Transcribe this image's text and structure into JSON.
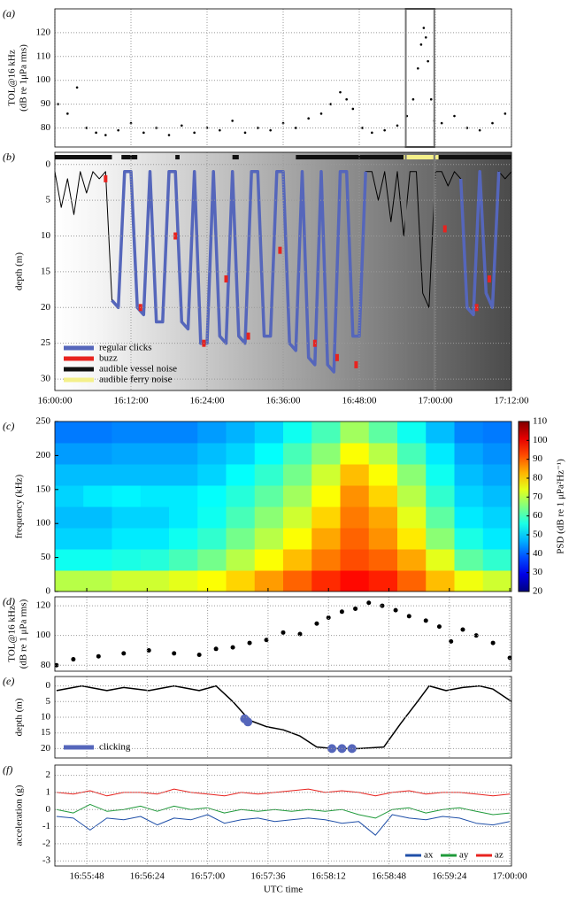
{
  "chart_data": [
    {
      "type": "scatter",
      "panel_label": "(a)",
      "ylabel": [
        "TOL@16 kHz",
        "(dB re 1μPa rms)"
      ],
      "color": "#000000",
      "grid": true,
      "xlim": [
        "16:00:00",
        "17:12:00"
      ],
      "xticks": [
        "16:00:00",
        "16:12:00",
        "16:24:00",
        "16:36:00",
        "16:48:00",
        "17:00:00",
        "17:12:00"
      ],
      "ylim": [
        72,
        130
      ],
      "yticks": [
        80,
        90,
        100,
        110,
        120
      ],
      "highlight": [
        "16:55:20",
        "16:59:50"
      ],
      "x": [
        "16:00:30",
        "16:02:00",
        "16:03:30",
        "16:05:00",
        "16:06:30",
        "16:08:00",
        "16:10:00",
        "16:12:00",
        "16:14:00",
        "16:16:00",
        "16:18:00",
        "16:20:00",
        "16:22:00",
        "16:24:00",
        "16:26:00",
        "16:28:00",
        "16:30:00",
        "16:32:00",
        "16:34:00",
        "16:36:00",
        "16:38:00",
        "16:40:00",
        "16:42:00",
        "16:43:30",
        "16:45:00",
        "16:46:00",
        "16:47:00",
        "16:48:30",
        "16:50:00",
        "16:52:00",
        "16:54:00",
        "16:55:30",
        "16:56:30",
        "16:57:15",
        "16:57:45",
        "16:58:10",
        "16:58:30",
        "16:58:50",
        "16:59:20",
        "16:59:50",
        "17:01:00",
        "17:03:00",
        "17:05:00",
        "17:07:00",
        "17:09:00",
        "17:11:00"
      ],
      "y": [
        90,
        86,
        97,
        80,
        78,
        77,
        79,
        82,
        78,
        80,
        77,
        81,
        78,
        80,
        79,
        83,
        78,
        80,
        79,
        82,
        80,
        84,
        86,
        90,
        95,
        92,
        88,
        80,
        78,
        79,
        81,
        85,
        92,
        105,
        115,
        122,
        118,
        108,
        92,
        83,
        82,
        85,
        80,
        79,
        82,
        86
      ]
    },
    {
      "type": "line",
      "panel_label": "(b)",
      "ylabel": "depth (m)",
      "grid": true,
      "show_xtick_labels": true,
      "y_inverted": true,
      "legend": "lower left",
      "xlim": [
        "16:00:00",
        "17:12:00"
      ],
      "xticks": [
        "16:00:00",
        "16:12:00",
        "16:24:00",
        "16:36:00",
        "16:48:00",
        "17:00:00",
        "17:12:00"
      ],
      "ylim": [
        -1.7,
        31.6
      ],
      "yticks": [
        0,
        5,
        10,
        15,
        20,
        25,
        30
      ],
      "x": [
        "16:00:00",
        "16:01:00",
        "16:02:00",
        "16:03:00",
        "16:04:00",
        "16:05:00",
        "16:06:00",
        "16:07:00",
        "16:08:00",
        "16:09:00",
        "16:10:00",
        "16:11:00",
        "16:12:00",
        "16:13:00",
        "16:14:00",
        "16:15:00",
        "16:16:00",
        "16:17:00",
        "16:18:00",
        "16:19:00",
        "16:20:00",
        "16:21:00",
        "16:22:00",
        "16:23:00",
        "16:24:00",
        "16:25:00",
        "16:26:00",
        "16:27:00",
        "16:28:00",
        "16:29:00",
        "16:30:00",
        "16:31:00",
        "16:32:00",
        "16:33:00",
        "16:34:00",
        "16:35:00",
        "16:36:00",
        "16:37:00",
        "16:38:00",
        "16:39:00",
        "16:40:00",
        "16:41:00",
        "16:42:00",
        "16:43:00",
        "16:44:00",
        "16:45:00",
        "16:46:00",
        "16:47:00",
        "16:48:00",
        "16:49:00",
        "16:50:00",
        "16:51:00",
        "16:52:00",
        "16:53:00",
        "16:54:00",
        "16:55:00",
        "16:56:00",
        "16:57:00",
        "16:58:00",
        "16:59:00",
        "17:00:00",
        "17:01:00",
        "17:02:00",
        "17:03:00",
        "17:04:00",
        "17:05:00",
        "17:06:00",
        "17:07:00",
        "17:08:00",
        "17:09:00",
        "17:10:00",
        "17:11:00",
        "17:12:00"
      ],
      "series": [
        {
          "color": "#000000",
          "values": [
            1,
            6,
            2,
            7,
            1,
            4,
            1,
            2,
            1,
            19,
            20,
            1,
            1,
            20,
            21,
            1,
            22,
            22,
            1,
            1,
            22,
            23,
            1,
            25,
            25,
            1,
            24,
            25,
            1,
            24,
            25,
            1,
            1,
            24,
            24,
            1,
            1,
            25,
            26,
            1,
            27,
            28,
            1,
            28,
            29,
            1,
            1,
            24,
            24,
            1,
            1,
            5,
            1,
            8,
            1,
            10,
            1,
            1,
            18,
            20,
            1,
            1,
            3,
            1,
            2,
            20,
            21,
            1,
            18,
            20,
            1,
            2,
            1
          ]
        },
        {
          "name": "regular clicks",
          "color": "#5566bb",
          "values": [
            null,
            null,
            null,
            null,
            null,
            null,
            null,
            null,
            null,
            19,
            20,
            1,
            1,
            20,
            21,
            1,
            22,
            22,
            1,
            1,
            22,
            23,
            1,
            25,
            25,
            1,
            24,
            25,
            1,
            24,
            25,
            1,
            1,
            24,
            24,
            1,
            1,
            25,
            26,
            1,
            27,
            28,
            1,
            28,
            29,
            1,
            1,
            24,
            24,
            1,
            null,
            null,
            null,
            null,
            null,
            null,
            null,
            null,
            null,
            null,
            null,
            null,
            null,
            null,
            2,
            20,
            21,
            1,
            18,
            20,
            1,
            null,
            null
          ]
        }
      ],
      "buzz": {
        "name": "buzz",
        "color": "#e8231f",
        "x": [
          "16:08:00",
          "16:13:30",
          "16:19:00",
          "16:23:30",
          "16:27:00",
          "16:30:30",
          "16:35:30",
          "16:41:00",
          "16:44:30",
          "16:47:30",
          "17:01:30",
          "17:06:30",
          "17:08:30"
        ],
        "y": [
          2,
          20,
          10,
          25,
          16,
          24,
          12,
          25,
          27,
          28,
          9,
          20,
          16
        ]
      },
      "noise": [
        {
          "name": "audible vessel noise",
          "color": "#111111",
          "intervals": [
            [
              "16:00:00",
              "16:09:00"
            ],
            [
              "16:10:30",
              "16:13:00"
            ],
            [
              "16:19:00",
              "16:19:40"
            ],
            [
              "16:28:00",
              "16:29:00"
            ],
            [
              "16:38:00",
              "16:55:00"
            ],
            [
              "17:00:30",
              "17:12:00"
            ]
          ]
        },
        {
          "name": "audible ferry noise",
          "color": "#f4f08a",
          "intervals": [
            [
              "16:55:00",
              "17:00:30"
            ]
          ]
        }
      ]
    },
    {
      "type": "heatmap",
      "panel_label": "(c)",
      "ylabel": "frequency (kHz)",
      "grid": false,
      "xlim": [
        "16:55:29",
        "17:00:01"
      ],
      "xticks": [
        "16:55:48",
        "16:56:24",
        "16:57:00",
        "16:57:36",
        "16:58:12",
        "16:58:48",
        "16:59:24",
        "17:00:00"
      ],
      "ylim": [
        0,
        250
      ],
      "yticks": [
        0,
        50,
        100,
        150,
        200,
        250
      ],
      "x_edges": [
        "16:55:29",
        "16:55:46",
        "16:56:03",
        "16:56:20",
        "16:56:37",
        "16:56:54",
        "16:57:11",
        "16:57:28",
        "16:57:45",
        "16:58:02",
        "16:58:19",
        "16:58:36",
        "16:58:53",
        "16:59:10",
        "16:59:27",
        "16:59:44",
        "17:00:01"
      ],
      "y_edges": [
        0,
        31.25,
        62.5,
        93.75,
        125,
        156.25,
        187.5,
        218.75,
        250
      ],
      "z": [
        [
          70,
          70,
          72,
          72,
          74,
          76,
          80,
          85,
          90,
          95,
          98,
          96,
          90,
          82,
          75,
          72
        ],
        [
          55,
          55,
          56,
          57,
          60,
          64,
          70,
          76,
          82,
          88,
          92,
          90,
          84,
          74,
          62,
          58
        ],
        [
          50,
          50,
          52,
          52,
          55,
          58,
          64,
          70,
          76,
          84,
          90,
          86,
          78,
          66,
          56,
          52
        ],
        [
          48,
          48,
          50,
          50,
          52,
          55,
          60,
          66,
          72,
          80,
          88,
          84,
          74,
          62,
          52,
          50
        ],
        [
          50,
          52,
          53,
          52,
          52,
          54,
          57,
          62,
          68,
          76,
          86,
          80,
          70,
          58,
          50,
          48
        ],
        [
          48,
          48,
          48,
          48,
          48,
          50,
          54,
          58,
          64,
          72,
          82,
          76,
          66,
          55,
          48,
          46
        ],
        [
          45,
          45,
          46,
          46,
          46,
          48,
          50,
          54,
          60,
          66,
          76,
          70,
          60,
          52,
          46,
          44
        ],
        [
          42,
          42,
          43,
          43,
          43,
          45,
          47,
          50,
          55,
          60,
          68,
          62,
          55,
          48,
          43,
          42
        ]
      ],
      "clim": [
        20,
        110
      ],
      "colorbar": {
        "label": "PSD (dB re 1 μPa²Hz⁻¹)",
        "ticks": [
          20,
          30,
          40,
          50,
          60,
          70,
          80,
          90,
          100,
          110
        ]
      }
    },
    {
      "type": "scatter",
      "panel_label": "(d)",
      "ylabel": [
        "TOL@16 kHz",
        "(dB re 1 μPa rms)"
      ],
      "color": "#000000",
      "grid": true,
      "xlim": [
        "16:55:29",
        "17:00:01"
      ],
      "xticks": [
        "16:55:48",
        "16:56:24",
        "16:57:00",
        "16:57:36",
        "16:58:12",
        "16:58:48",
        "16:59:24",
        "17:00:00"
      ],
      "ylim": [
        76,
        126
      ],
      "yticks": [
        80,
        100,
        120
      ],
      "x": [
        "16:55:30",
        "16:55:40",
        "16:55:55",
        "16:56:10",
        "16:56:25",
        "16:56:40",
        "16:56:55",
        "16:57:05",
        "16:57:15",
        "16:57:25",
        "16:57:35",
        "16:57:45",
        "16:57:55",
        "16:58:05",
        "16:58:12",
        "16:58:20",
        "16:58:28",
        "16:58:36",
        "16:58:44",
        "16:58:52",
        "16:59:00",
        "16:59:10",
        "16:59:18",
        "16:59:25",
        "16:59:32",
        "16:59:40",
        "16:59:50",
        "17:00:00"
      ],
      "y": [
        80,
        84,
        86,
        88,
        90,
        88,
        87,
        91,
        92,
        95,
        97,
        102,
        101,
        108,
        112,
        116,
        118,
        122,
        120,
        117,
        113,
        110,
        106,
        96,
        104,
        100,
        95,
        85
      ]
    },
    {
      "type": "line",
      "panel_label": "(e)",
      "ylabel": "depth (m)",
      "grid": true,
      "y_inverted": true,
      "legend": "lower left",
      "xlim": [
        "16:55:29",
        "17:00:01"
      ],
      "xticks": [
        "16:55:48",
        "16:56:24",
        "16:57:00",
        "16:57:36",
        "16:58:12",
        "16:58:48",
        "16:59:24",
        "17:00:00"
      ],
      "ylim": [
        -3,
        23
      ],
      "yticks": [
        0,
        5,
        10,
        15,
        20
      ],
      "x": [
        "16:55:30",
        "16:55:45",
        "16:56:00",
        "16:56:10",
        "16:56:25",
        "16:56:40",
        "16:56:55",
        "16:57:05",
        "16:57:15",
        "16:57:25",
        "16:57:35",
        "16:57:45",
        "16:57:55",
        "16:58:05",
        "16:58:15",
        "16:58:30",
        "16:58:45",
        "16:58:55",
        "16:59:05",
        "16:59:12",
        "16:59:22",
        "16:59:32",
        "16:59:42",
        "16:59:50",
        "17:00:01"
      ],
      "series": [
        {
          "color": "#000000",
          "values": [
            1.5,
            0,
            1.5,
            0.5,
            1.5,
            0,
            1.5,
            0,
            5,
            11,
            13,
            14,
            16,
            19.5,
            20,
            20,
            19.5,
            12,
            5,
            0,
            1.5,
            0.5,
            0,
            1,
            5
          ]
        }
      ],
      "markers": {
        "name": "clicking",
        "color": "#5566bb",
        "x": [
          "16:57:22",
          "16:57:24",
          "16:58:14",
          "16:58:20",
          "16:58:26"
        ],
        "y": [
          10.5,
          11.5,
          20,
          20,
          20
        ]
      }
    },
    {
      "type": "line",
      "panel_label": "(f)",
      "ylabel": "acceleration (g)",
      "xlabel": "UTC time",
      "grid": true,
      "show_xtick_labels": true,
      "legend": "lower right",
      "xlim": [
        "16:55:29",
        "17:00:01"
      ],
      "xticks": [
        "16:55:48",
        "16:56:24",
        "16:57:00",
        "16:57:36",
        "16:58:12",
        "16:58:48",
        "16:59:24",
        "17:00:00"
      ],
      "ylim": [
        -3.3,
        2.6
      ],
      "yticks": [
        -3,
        -2,
        -1,
        0,
        1,
        2
      ],
      "x": [
        "16:55:30",
        "16:55:40",
        "16:55:50",
        "16:56:00",
        "16:56:10",
        "16:56:20",
        "16:56:30",
        "16:56:40",
        "16:56:50",
        "16:57:00",
        "16:57:10",
        "16:57:20",
        "16:57:30",
        "16:57:40",
        "16:57:50",
        "16:58:00",
        "16:58:10",
        "16:58:20",
        "16:58:30",
        "16:58:40",
        "16:58:50",
        "16:59:00",
        "16:59:10",
        "16:59:20",
        "16:59:30",
        "16:59:40",
        "16:59:50",
        "17:00:00"
      ],
      "series": [
        {
          "name": "ax",
          "color": "#1f4fa8",
          "values": [
            -0.4,
            -0.5,
            -1.2,
            -0.5,
            -0.6,
            -0.4,
            -0.9,
            -0.5,
            -0.6,
            -0.3,
            -0.8,
            -0.6,
            -0.5,
            -0.7,
            -0.6,
            -0.5,
            -0.6,
            -0.8,
            -0.7,
            -1.5,
            -0.3,
            -0.5,
            -0.6,
            -0.4,
            -0.5,
            -0.8,
            -0.9,
            -0.7
          ]
        },
        {
          "name": "ay",
          "color": "#1f9a3a",
          "values": [
            0,
            -0.2,
            0.3,
            -0.1,
            0,
            0.2,
            -0.1,
            0.2,
            0,
            0.1,
            -0.2,
            0,
            -0.1,
            0,
            -0.1,
            0,
            -0.1,
            0,
            -0.3,
            -0.5,
            0,
            0.1,
            -0.2,
            0,
            0.1,
            -0.1,
            -0.3,
            -0.2
          ]
        },
        {
          "name": "az",
          "color": "#e8231f",
          "values": [
            1,
            0.9,
            1.1,
            0.8,
            1,
            1,
            0.9,
            1.2,
            1,
            0.9,
            0.8,
            1,
            0.9,
            1,
            1.1,
            1.2,
            1,
            1.1,
            1,
            0.8,
            1,
            1.1,
            0.9,
            1,
            1,
            0.9,
            0.8,
            0.9
          ]
        }
      ]
    }
  ]
}
